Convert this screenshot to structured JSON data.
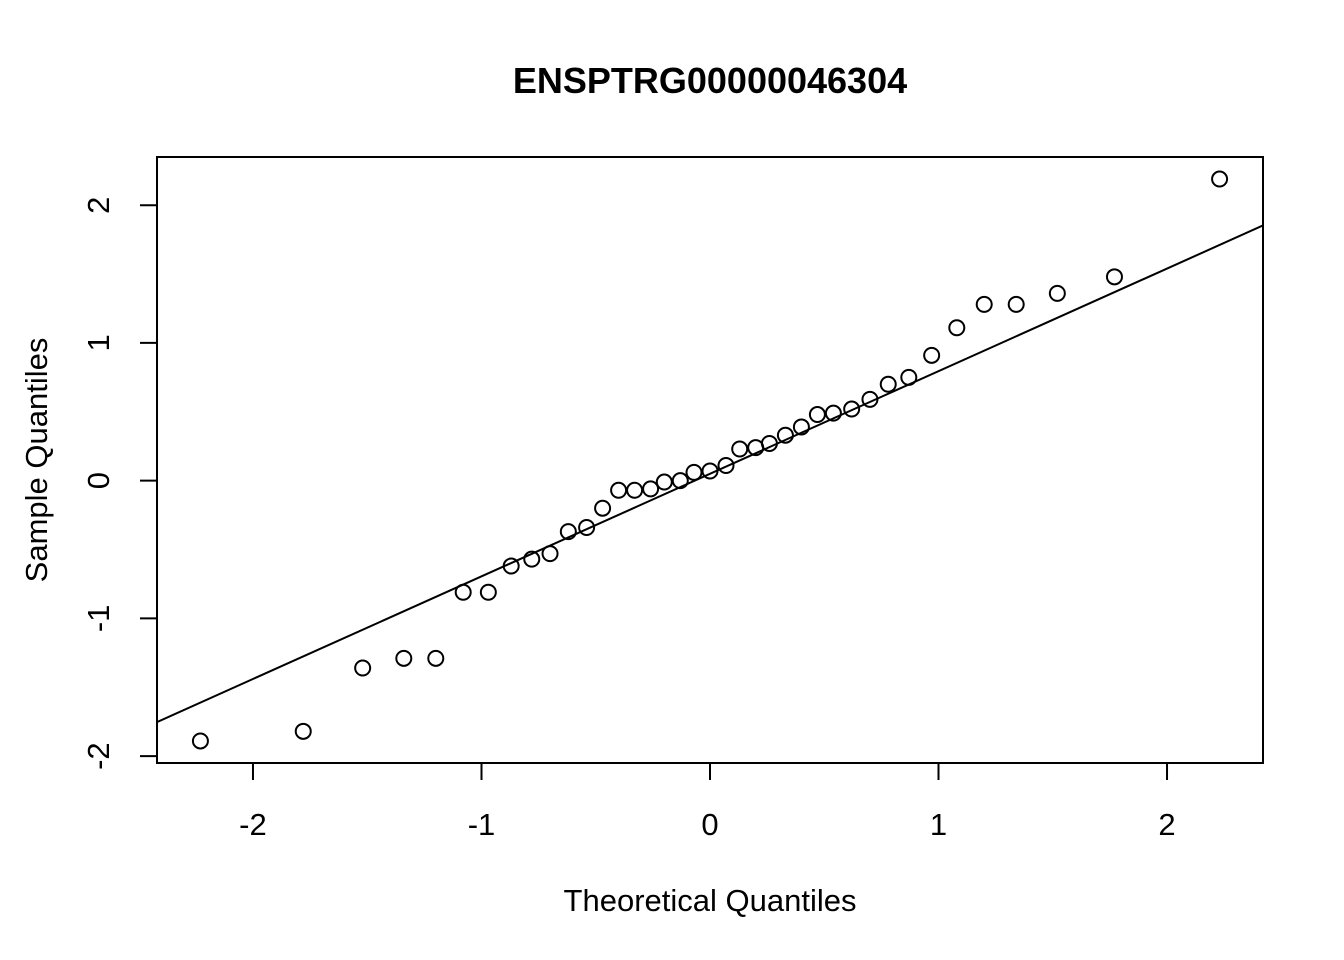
{
  "chart_data": {
    "type": "scatter",
    "subtype": "qq-plot",
    "title": "ENSPTRG00000046304",
    "xlabel": "Theoretical Quantiles",
    "ylabel": "Sample Quantiles",
    "xlim": [
      -2.42,
      2.42
    ],
    "ylim": [
      -2.05,
      2.35
    ],
    "x_ticks": [
      -2,
      -1,
      0,
      1,
      2
    ],
    "x_tick_labels": [
      "-2",
      "-1",
      "0",
      "1",
      "2"
    ],
    "y_ticks": [
      -2,
      -1,
      0,
      1,
      2
    ],
    "y_tick_labels": [
      "-2",
      "-1",
      "0",
      "1",
      "2"
    ],
    "grid": false,
    "marker": "open-circle",
    "colors": {
      "marker": "#000000",
      "line": "#000000",
      "axes": "#000000",
      "background": "#ffffff"
    },
    "reference_line": {
      "slope": 0.745,
      "intercept": 0.05
    },
    "points": [
      {
        "x": -2.23,
        "y": -1.89
      },
      {
        "x": -1.78,
        "y": -1.82
      },
      {
        "x": -1.52,
        "y": -1.36
      },
      {
        "x": -1.34,
        "y": -1.29
      },
      {
        "x": -1.2,
        "y": -1.29
      },
      {
        "x": -1.08,
        "y": -0.81
      },
      {
        "x": -0.97,
        "y": -0.81
      },
      {
        "x": -0.87,
        "y": -0.62
      },
      {
        "x": -0.78,
        "y": -0.57
      },
      {
        "x": -0.7,
        "y": -0.53
      },
      {
        "x": -0.62,
        "y": -0.37
      },
      {
        "x": -0.54,
        "y": -0.34
      },
      {
        "x": -0.47,
        "y": -0.2
      },
      {
        "x": -0.4,
        "y": -0.07
      },
      {
        "x": -0.33,
        "y": -0.07
      },
      {
        "x": -0.26,
        "y": -0.06
      },
      {
        "x": -0.2,
        "y": -0.01
      },
      {
        "x": -0.13,
        "y": 0.0
      },
      {
        "x": -0.07,
        "y": 0.06
      },
      {
        "x": 0.0,
        "y": 0.07
      },
      {
        "x": 0.07,
        "y": 0.11
      },
      {
        "x": 0.13,
        "y": 0.23
      },
      {
        "x": 0.2,
        "y": 0.24
      },
      {
        "x": 0.26,
        "y": 0.27
      },
      {
        "x": 0.33,
        "y": 0.33
      },
      {
        "x": 0.4,
        "y": 0.39
      },
      {
        "x": 0.47,
        "y": 0.48
      },
      {
        "x": 0.54,
        "y": 0.49
      },
      {
        "x": 0.62,
        "y": 0.52
      },
      {
        "x": 0.7,
        "y": 0.59
      },
      {
        "x": 0.78,
        "y": 0.7
      },
      {
        "x": 0.87,
        "y": 0.75
      },
      {
        "x": 0.97,
        "y": 0.91
      },
      {
        "x": 1.08,
        "y": 1.11
      },
      {
        "x": 1.2,
        "y": 1.28
      },
      {
        "x": 1.34,
        "y": 1.28
      },
      {
        "x": 1.52,
        "y": 1.36
      },
      {
        "x": 1.77,
        "y": 1.48
      },
      {
        "x": 2.23,
        "y": 2.19
      }
    ]
  }
}
